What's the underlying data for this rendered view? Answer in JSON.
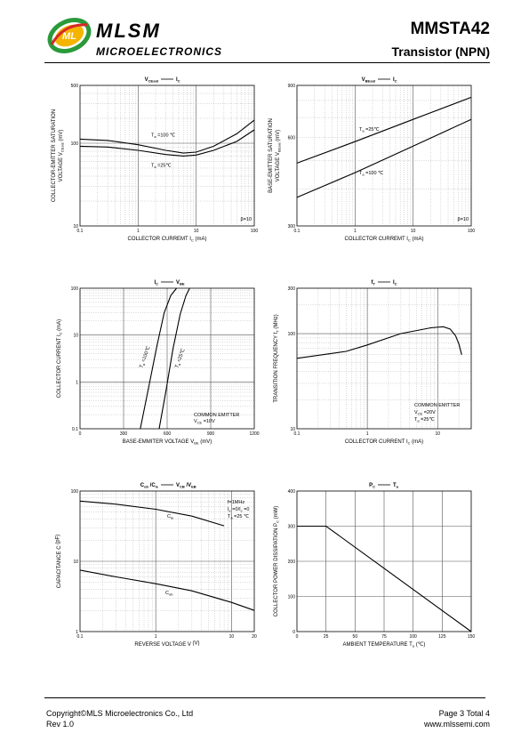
{
  "header": {
    "brand": "MLSM",
    "brand_sub": "MICROELECTRONICS",
    "logo_text": "ML",
    "part_number": "MMSTA42",
    "part_type": "Transistor (NPN)"
  },
  "footer": {
    "copyright": "Copyright©MLS Microelectronics Co., Ltd",
    "rev": "Rev 1.0",
    "page": "Page 3 Total 4",
    "website": "www.mlssemi.com"
  },
  "chart_data": [
    {
      "id": "vcesat",
      "type": "line",
      "title": [
        "V",
        "CEsat",
        "I",
        "C"
      ],
      "xscale": "log",
      "yscale": "log",
      "xlim": [
        0.1,
        100
      ],
      "ylim": [
        10,
        500
      ],
      "xticks": [
        "0.1",
        "1",
        "10",
        "100"
      ],
      "yticks": [
        "10",
        "100",
        "500"
      ],
      "xlabel": [
        "COLLECTOR CURREMT",
        "I",
        "C",
        "(mA)"
      ],
      "ylabel": [
        "COLLECTOR-EMITTER SATURATION",
        "VOLTAGE",
        "V",
        "CEsat",
        "(mV)"
      ],
      "note": "β=10",
      "series": [
        {
          "label": [
            "T",
            "a",
            "=100 ℃"
          ],
          "x": [
            0.1,
            0.3,
            1,
            3,
            6,
            10,
            20,
            50,
            100
          ],
          "y": [
            112,
            108,
            96,
            82,
            76,
            78,
            92,
            130,
            190
          ]
        },
        {
          "label": [
            "T",
            "a",
            "=25℃"
          ],
          "x": [
            0.1,
            0.3,
            1,
            3,
            6,
            10,
            20,
            50,
            100
          ],
          "y": [
            92,
            90,
            82,
            73,
            70,
            72,
            82,
            105,
            145
          ]
        }
      ]
    },
    {
      "id": "vbesat",
      "type": "line",
      "title": [
        "V",
        "BEsat",
        "I",
        "C"
      ],
      "xscale": "log",
      "yscale": "log",
      "xlim": [
        0.1,
        100
      ],
      "ylim": [
        300,
        900
      ],
      "xticks": [
        "0.1",
        "1",
        "10",
        "100"
      ],
      "yticks": [
        "300",
        "600",
        "900"
      ],
      "xlabel": [
        "COLLECTOR CURREMT",
        "I",
        "C",
        "(mA)"
      ],
      "ylabel": [
        "BASE-EMITTER SATURATION",
        "VOLTAGE",
        "V",
        "BEsat",
        "(mV)"
      ],
      "note": "β=10",
      "series": [
        {
          "label": [
            "T",
            "a",
            "=25℃"
          ],
          "x": [
            0.1,
            1,
            10,
            100
          ],
          "y": [
            490,
            580,
            690,
            820
          ]
        },
        {
          "label": [
            "T",
            "a",
            "=100 ℃"
          ],
          "x": [
            0.1,
            1,
            10,
            100
          ],
          "y": [
            375,
            455,
            560,
            690
          ]
        }
      ]
    },
    {
      "id": "icvbe",
      "type": "line",
      "title": [
        "I",
        "C",
        "V",
        "BE"
      ],
      "xscale": "linear",
      "yscale": "log",
      "xlim": [
        0,
        1200
      ],
      "ylim": [
        0.1,
        100
      ],
      "xticks": [
        "0",
        "300",
        "600",
        "900",
        "1200"
      ],
      "yticks": [
        "0.1",
        "1",
        "10",
        "100"
      ],
      "xlabel": [
        "BASE-EMMITER VOLTAGE",
        "V",
        "BE",
        "(mV)"
      ],
      "ylabel": [
        "COLLECTOR CURRENT",
        "I",
        "C",
        "(mA)"
      ],
      "note_lines": [
        "COMMON EMITTER",
        "V",
        "CE",
        "=10V"
      ],
      "series": [
        {
          "label": [
            "T",
            "a",
            "=100℃"
          ],
          "x": [
            415,
            470,
            530,
            580,
            625,
            665
          ],
          "y": [
            0.1,
            0.7,
            6,
            30,
            70,
            100
          ]
        },
        {
          "label": [
            "T",
            "a",
            "=25℃"
          ],
          "x": [
            545,
            590,
            640,
            690,
            730,
            755
          ],
          "y": [
            0.1,
            0.6,
            5,
            28,
            70,
            100
          ]
        }
      ]
    },
    {
      "id": "ftic",
      "type": "line",
      "title": [
        "f",
        "T",
        "I",
        "C"
      ],
      "xscale": "log",
      "yscale": "log",
      "xlim": [
        0.1,
        30
      ],
      "ylim": [
        10,
        300
      ],
      "xticks": [
        "0.1",
        "1",
        "10"
      ],
      "yticks": [
        "10",
        "100",
        "300"
      ],
      "xlabel": [
        "COLLECTOR CURRENT",
        "I",
        "C",
        "(mA)"
      ],
      "ylabel": [
        "TRANSITION FREQUENCY",
        "f",
        "T",
        "(MHz)"
      ],
      "note_lines": [
        "COMMON EMITTER",
        "V",
        "CE",
        "=20V",
        "T",
        "a",
        "=25℃"
      ],
      "series": [
        {
          "x": [
            0.1,
            0.5,
            1,
            3,
            8,
            12,
            15,
            18,
            20,
            22
          ],
          "y": [
            55,
            65,
            76,
            100,
            115,
            118,
            112,
            95,
            78,
            60
          ]
        }
      ]
    },
    {
      "id": "cap",
      "type": "line",
      "title": [
        "C",
        "ob",
        "/C",
        "ie",
        "V",
        "CB",
        "/V",
        "EB"
      ],
      "xscale": "log",
      "yscale": "log",
      "xlim": [
        0.1,
        20
      ],
      "ylim": [
        1,
        100
      ],
      "xticks": [
        "0.1",
        "1",
        "10",
        "20"
      ],
      "yticks": [
        "1",
        "10",
        "100"
      ],
      "xlabel": [
        "REVERSE VOLTAGE",
        "V",
        "",
        "(V)"
      ],
      "ylabel": [
        "CAPACITANCE",
        "C",
        "",
        "(pF)"
      ],
      "note_lines": [
        "f=1MHz",
        "I",
        "e",
        "=0/I",
        "c",
        "=0",
        "T",
        "a",
        "=25 ℃"
      ],
      "series": [
        {
          "label": [
            "C",
            "ie"
          ],
          "x": [
            0.1,
            0.3,
            1,
            3,
            8
          ],
          "y": [
            72,
            65,
            55,
            44,
            32
          ]
        },
        {
          "label": [
            "C",
            "ob"
          ],
          "x": [
            0.1,
            0.3,
            1,
            3,
            10,
            20
          ],
          "y": [
            7.5,
            6,
            4.8,
            3.8,
            2.6,
            2
          ]
        }
      ]
    },
    {
      "id": "pc",
      "type": "line",
      "title": [
        "P",
        "C",
        "T",
        "a"
      ],
      "xscale": "linear",
      "yscale": "linear",
      "xlim": [
        0,
        150
      ],
      "ylim": [
        0,
        400
      ],
      "xticks": [
        "0",
        "25",
        "50",
        "75",
        "100",
        "125",
        "150"
      ],
      "yticks": [
        "0",
        "100",
        "200",
        "300",
        "400"
      ],
      "xlabel": [
        "AMBIENT TEMPERATURE",
        "T",
        "a",
        "(℃)"
      ],
      "ylabel": [
        "COLLECTOR POWER DISSIPATION",
        "P",
        "C",
        "(mW)"
      ],
      "series": [
        {
          "x": [
            0,
            25,
            150
          ],
          "y": [
            300,
            300,
            0
          ]
        }
      ]
    }
  ]
}
